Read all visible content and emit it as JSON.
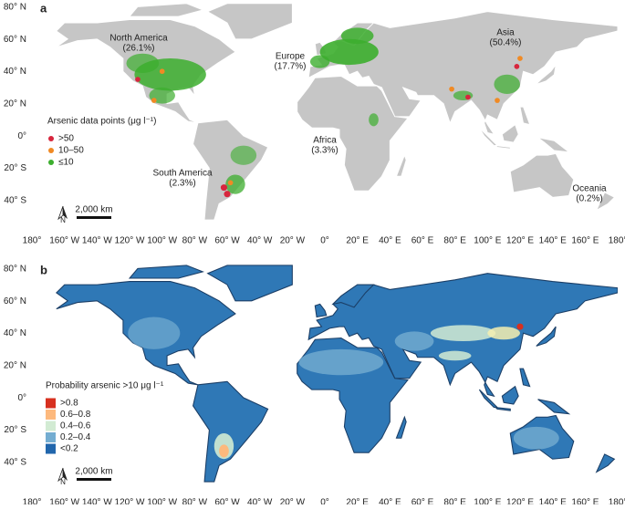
{
  "lat_ticks": [
    "80° N",
    "60° N",
    "40° N",
    "20° N",
    "0°",
    "20° S",
    "40° S"
  ],
  "lon_ticks": [
    "180°",
    "160° W",
    "140° W",
    "120° W",
    "100° W",
    "80° W",
    "60° W",
    "40° W",
    "20° W",
    "0°",
    "20° E",
    "40° E",
    "60° E",
    "80° E",
    "100° E",
    "120° E",
    "140° E",
    "160° E",
    "180°"
  ],
  "panels": [
    {
      "label": "a",
      "legend": {
        "title": "Arsenic data points (μg l⁻¹)",
        "items": [
          {
            "label": ">50",
            "color": "#d7263d"
          },
          {
            "label": "10–50",
            "color": "#f08a24"
          },
          {
            "label": "≤10",
            "color": "#3cae2e"
          }
        ]
      },
      "regions": [
        {
          "name": "North America",
          "share": "(26.1%)"
        },
        {
          "name": "Europe",
          "share": "(17.7%)"
        },
        {
          "name": "Asia",
          "share": "(50.4%)"
        },
        {
          "name": "Africa",
          "share": "(3.3%)"
        },
        {
          "name": "South America",
          "share": "(2.3%)"
        },
        {
          "name": "Oceania",
          "share": "(0.2%)"
        }
      ],
      "scale_bar": "2,000 km",
      "north": "N"
    },
    {
      "label": "b",
      "legend": {
        "title": "Probability arsenic >10 μg l⁻¹",
        "items": [
          {
            "label": ">0.8",
            "color": "#d7301f"
          },
          {
            "label": "0.6–0.8",
            "color": "#fdb97d"
          },
          {
            "label": "0.4–0.6",
            "color": "#d2ebd3"
          },
          {
            "label": "0.2–0.4",
            "color": "#74add1"
          },
          {
            "label": "<0.2",
            "color": "#2166ac"
          }
        ]
      },
      "scale_bar": "2,000 km",
      "north": "N"
    }
  ]
}
